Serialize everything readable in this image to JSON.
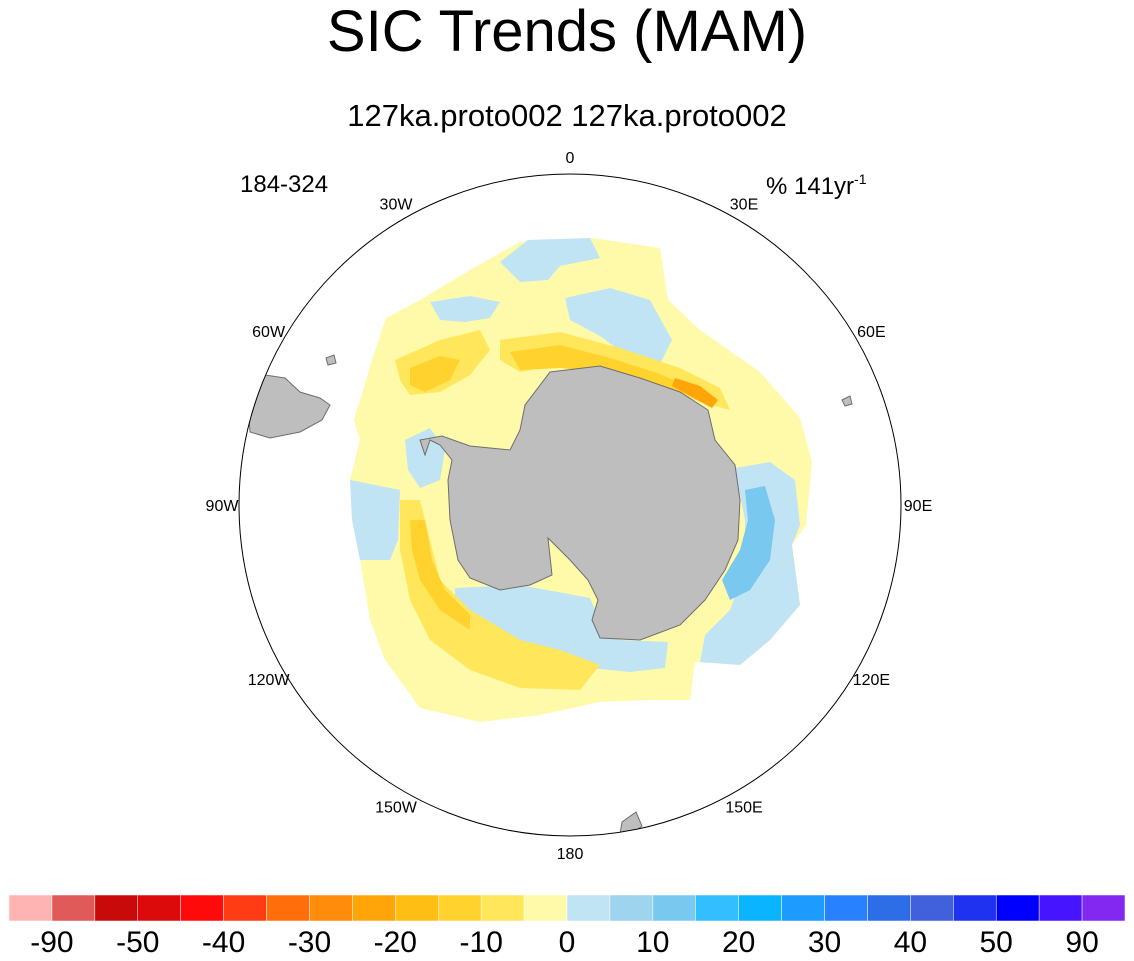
{
  "title": "SIC Trends (MAM)",
  "subtitle": "127ka.proto002  127ka.proto002",
  "period_label": "184-324",
  "units": {
    "prefix": "% 141yr",
    "superscript": "-1"
  },
  "map": {
    "projection": "south-polar-stereographic",
    "land_color": "#bebebe",
    "boundary_color": "#000000",
    "longitude_labels": [
      {
        "lon": 0,
        "text": "0"
      },
      {
        "lon": 30,
        "text": "30E"
      },
      {
        "lon": 60,
        "text": "60E"
      },
      {
        "lon": 90,
        "text": "90E"
      },
      {
        "lon": 120,
        "text": "120E"
      },
      {
        "lon": 150,
        "text": "150E"
      },
      {
        "lon": 180,
        "text": "180"
      },
      {
        "lon": -150,
        "text": "150W"
      },
      {
        "lon": -120,
        "text": "120W"
      },
      {
        "lon": -90,
        "text": "90W"
      },
      {
        "lon": -60,
        "text": "60W"
      },
      {
        "lon": -30,
        "text": "30W"
      }
    ]
  },
  "colorbar": {
    "colors": [
      "#ffb4b4",
      "#e05a5a",
      "#c80a0a",
      "#dc0a0a",
      "#ff0a0a",
      "#ff3c14",
      "#ff6e0a",
      "#ff8c0a",
      "#ffa50a",
      "#ffbe14",
      "#ffd22d",
      "#ffe65a",
      "#fffaaa",
      "#c0e4f4",
      "#9ed4ee",
      "#78c8f0",
      "#32beff",
      "#0ab4ff",
      "#1e9bff",
      "#2882ff",
      "#2d6ee6",
      "#4160dc",
      "#1e32f0",
      "#0000ff",
      "#4614ff",
      "#8228f0"
    ],
    "tick_labels": [
      "-90",
      "-50",
      "-40",
      "-30",
      "-20",
      "-10",
      "0",
      "10",
      "20",
      "30",
      "40",
      "50",
      "90"
    ]
  }
}
